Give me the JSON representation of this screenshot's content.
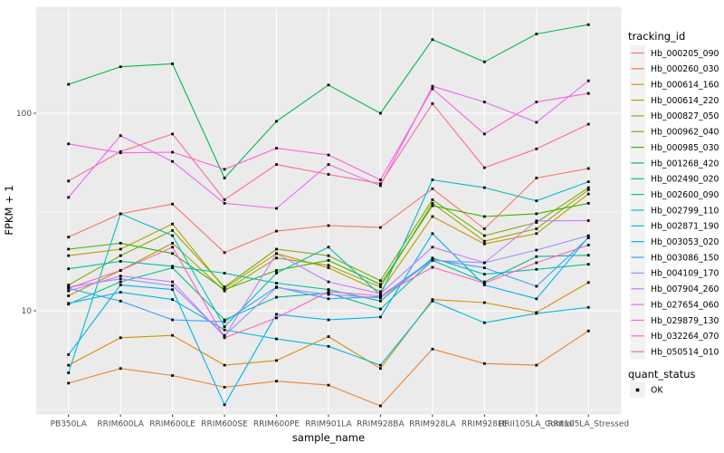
{
  "figure": {
    "background": "#FFFFFF",
    "panel_background": "#EBEBEB",
    "grid_color": "#FFFFFF",
    "tick_text_color": "#4D4D4D",
    "marker_color": "#000000"
  },
  "axes": {
    "x_title": "sample_name",
    "y_title": "FPKM + 1",
    "y_tick_labels": [
      "100",
      "10"
    ],
    "y_tick_values": [
      100,
      10
    ]
  },
  "legend": {
    "tracking_title": "tracking_id",
    "quant_title": "quant_status",
    "quant_items": [
      {
        "label": "OK",
        "marker": "black-square"
      }
    ]
  },
  "chart_data": {
    "type": "line",
    "x_type": "categorical",
    "y_scale": "log10",
    "title": "",
    "xlabel": "sample_name",
    "ylabel": "FPKM + 1",
    "ylim": [
      3,
      346
    ],
    "y_major_gridlines": [
      10,
      100
    ],
    "y_minor_gridlines": [
      3.162,
      31.62,
      316.2
    ],
    "grid": "on",
    "legend_position": "right",
    "point_marker": "small black square (quant_status = OK)",
    "categories": [
      "PB350LA",
      "RRIM600LA",
      "RRIM600LE",
      "RRIM600SE",
      "RRIM600PE",
      "RRIM901LA",
      "RRIM928BA",
      "RRIM928LA",
      "RRIM928LE",
      "RRII105LA_Control",
      "RRII105LA_Stressed"
    ],
    "series": [
      {
        "name": "Hb_000205_090",
        "color": "#F8766D",
        "values": [
          23.6,
          31,
          34.7,
          19.7,
          25.3,
          27,
          26.4,
          41.5,
          26,
          47,
          52.5
        ]
      },
      {
        "name": "Hb_000260_030",
        "color": "#EA8331",
        "values": [
          4.3,
          5.1,
          4.7,
          4.1,
          4.4,
          4.2,
          3.3,
          6.4,
          5.4,
          5.3,
          7.9
        ]
      },
      {
        "name": "Hb_000614_160",
        "color": "#D89000",
        "values": [
          5.3,
          7.3,
          7.5,
          5.3,
          5.6,
          7.4,
          5.1,
          11.4,
          11.0,
          9.8,
          13.9
        ]
      },
      {
        "name": "Hb_000614_220",
        "color": "#C09B00",
        "values": [
          19.0,
          20.5,
          27.5,
          13.0,
          19.5,
          16.5,
          12.5,
          30,
          21.8,
          24.6,
          39
        ]
      },
      {
        "name": "Hb_000827_050",
        "color": "#A3A500",
        "values": [
          11.9,
          16,
          22,
          12.6,
          18.5,
          17,
          13.2,
          35,
          22.5,
          26,
          41
        ]
      },
      {
        "name": "Hb_000962_040",
        "color": "#7CAE00",
        "values": [
          13.5,
          19,
          25.5,
          13.2,
          20.5,
          19,
          14.2,
          36.5,
          24,
          28,
          42
        ]
      },
      {
        "name": "Hb_000985_030",
        "color": "#39B600",
        "values": [
          20.5,
          22,
          19.5,
          12.8,
          16,
          18,
          13.6,
          34,
          30,
          31,
          35
        ]
      },
      {
        "name": "Hb_001268_420",
        "color": "#00BB4E",
        "values": [
          140,
          172,
          178,
          47,
          91,
          139,
          100,
          236,
          182,
          252,
          281
        ]
      },
      {
        "name": "Hb_002490_020",
        "color": "#00C08B",
        "values": [
          10.8,
          14,
          16.5,
          9.0,
          11.7,
          12.3,
          10.2,
          18,
          14,
          18.8,
          19.1
        ]
      },
      {
        "name": "Hb_002600_090",
        "color": "#00C1A7",
        "values": [
          16.3,
          17.8,
          16.8,
          15.5,
          13.8,
          12.8,
          11.2,
          18.5,
          15.3,
          16.2,
          17.2
        ]
      },
      {
        "name": "Hb_002799_110",
        "color": "#00BFC4",
        "values": [
          4.85,
          31,
          24,
          8.3,
          15.5,
          21,
          12,
          46,
          42,
          36,
          45
        ]
      },
      {
        "name": "Hb_002871_190",
        "color": "#00BAE0",
        "values": [
          10.9,
          12.4,
          11.4,
          8.0,
          7.2,
          6.6,
          5.3,
          11.2,
          8.7,
          9.7,
          10.4
        ]
      },
      {
        "name": "Hb_003053_020",
        "color": "#00B0F6",
        "values": [
          6.0,
          13.5,
          12.8,
          3.34,
          9.6,
          9.0,
          9.3,
          24.6,
          13.5,
          11.5,
          23.6
        ]
      },
      {
        "name": "Hb_003086_150",
        "color": "#35A2FF",
        "values": [
          13.0,
          11.2,
          9.0,
          8.8,
          13.2,
          11.5,
          11.8,
          18.2,
          16.5,
          13.3,
          23.4
        ]
      },
      {
        "name": "Hb_004109_170",
        "color": "#9590FF",
        "values": [
          13.2,
          14.5,
          13.4,
          7.5,
          13.1,
          12.1,
          11.6,
          18.0,
          17.5,
          20.3,
          24
        ]
      },
      {
        "name": "Hb_007904_260",
        "color": "#C77CFF",
        "values": [
          12.6,
          15,
          14,
          7.4,
          19.5,
          14,
          12.2,
          21,
          17.5,
          28.5,
          28.6
        ]
      },
      {
        "name": "Hb_027654_060",
        "color": "#E76BF3",
        "values": [
          37.5,
          77,
          57,
          35,
          33,
          55,
          43,
          137,
          114,
          90,
          146
        ]
      },
      {
        "name": "Hb_029879_130",
        "color": "#FA62DB",
        "values": [
          70,
          63,
          63.5,
          52,
          66.5,
          61.5,
          46,
          133,
          78.5,
          114,
          126
        ]
      },
      {
        "name": "Hb_032264_070",
        "color": "#FF62BC",
        "values": [
          13.0,
          16,
          21,
          7.3,
          9.2,
          12.5,
          11.9,
          16.6,
          13.8,
          17.5,
          21.5
        ]
      },
      {
        "name": "Hb_050514_010",
        "color": "#FF6A98",
        "values": [
          45.4,
          64,
          78.5,
          36.5,
          55,
          49,
          44,
          112,
          53,
          66,
          88
        ]
      }
    ]
  }
}
